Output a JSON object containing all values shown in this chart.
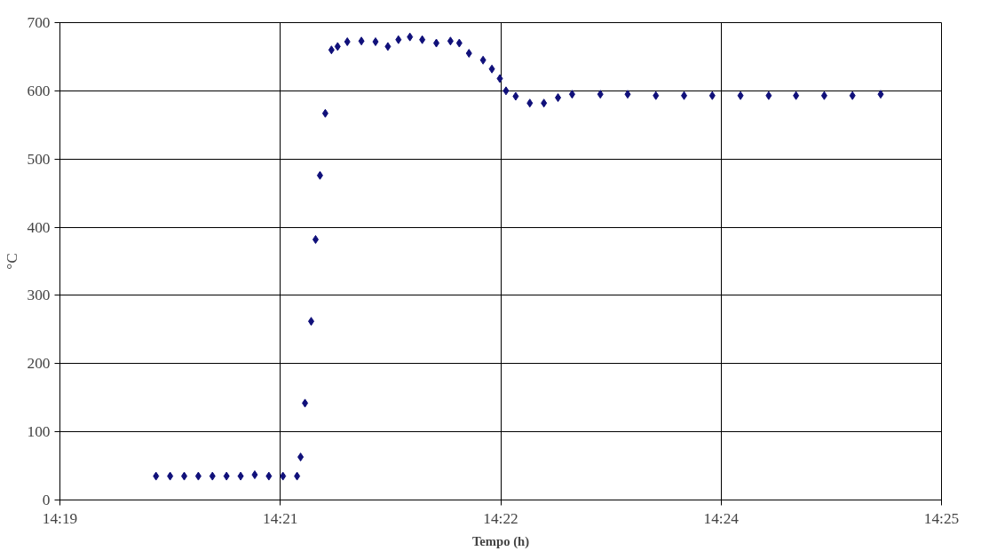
{
  "chart_data": {
    "type": "scatter",
    "xlabel": "Tempo (h)",
    "ylabel": "°C",
    "marker": "diamond",
    "grid": true,
    "xlim": [
      14.32,
      14.42
    ],
    "xticks": [
      {
        "value": 14.32,
        "label": "14:19"
      },
      {
        "value": 14.345,
        "label": "14:21"
      },
      {
        "value": 14.37,
        "label": "14:22"
      },
      {
        "value": 14.395,
        "label": "14:24"
      },
      {
        "value": 14.42,
        "label": "14:25"
      }
    ],
    "ylim": [
      0,
      700
    ],
    "yticks": [
      0,
      100,
      200,
      300,
      400,
      500,
      600,
      700
    ],
    "series": [
      {
        "color": "#10107a",
        "x": [
          14.3309,
          14.3325,
          14.3341,
          14.3357,
          14.3373,
          14.3389,
          14.3405,
          14.3421,
          14.3437,
          14.3453,
          14.3469,
          14.3473,
          14.3478,
          14.3485,
          14.349,
          14.3495,
          14.3501,
          14.3508,
          14.3515,
          14.3526,
          14.3542,
          14.3558,
          14.3572,
          14.3584,
          14.3597,
          14.3611,
          14.3627,
          14.3643,
          14.3653,
          14.3664,
          14.368,
          14.369,
          14.3699,
          14.3706,
          14.3717,
          14.3733,
          14.3749,
          14.3765,
          14.3781,
          14.3813,
          14.3844,
          14.3876,
          14.3908,
          14.394,
          14.3972,
          14.4004,
          14.4035,
          14.4067,
          14.4099,
          14.4131
        ],
        "values": [
          35,
          35,
          35,
          35,
          35,
          35,
          35,
          37,
          35,
          35,
          35,
          63,
          142,
          262,
          382,
          476,
          567,
          660,
          665,
          672,
          673,
          672,
          665,
          675,
          679,
          675,
          670,
          673,
          670,
          655,
          645,
          632,
          618,
          600,
          592,
          582,
          582,
          590,
          595,
          595,
          595,
          593,
          593,
          593,
          593,
          593,
          593,
          593,
          593,
          595
        ]
      }
    ]
  }
}
